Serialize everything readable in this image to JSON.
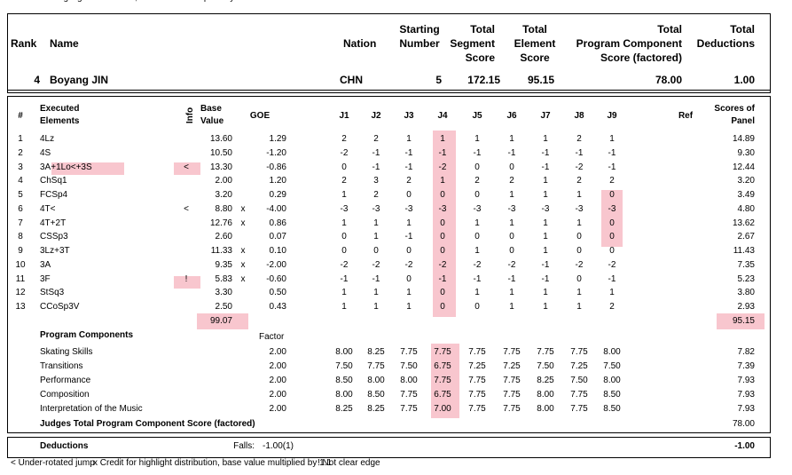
{
  "top_note": "x Credit for highlight distribution, base value multiplied by 1.1",
  "summary": {
    "labels": {
      "rank": "Rank",
      "name": "Name",
      "nation": "Nation",
      "starting_number": [
        "Starting",
        "Number"
      ],
      "segment": [
        "Total",
        "Segment",
        "Score"
      ],
      "element": [
        "Total",
        "Element",
        "Score"
      ],
      "pcs": [
        "Total",
        "Program  Component",
        "Score (factored)"
      ],
      "deductions": [
        "Total",
        "Deductions"
      ]
    },
    "row": {
      "rank": "4",
      "name": "Boyang JIN",
      "nation": "CHN",
      "starting_number": "5",
      "segment": "172.15",
      "element": "95.15",
      "pcs": "78.00",
      "deductions": "1.00"
    }
  },
  "elements": {
    "headers": {
      "num": "#",
      "name": [
        "Executed",
        "Elements"
      ],
      "info": "Info",
      "base": [
        "Base",
        "Value"
      ],
      "goe": "GOE",
      "judges": [
        "J1",
        "J2",
        "J3",
        "J4",
        "J5",
        "J6",
        "J7",
        "J8",
        "J9"
      ],
      "ref": "Ref",
      "panel": [
        "Scores of",
        "Panel"
      ]
    },
    "rows": [
      {
        "num": "1",
        "name": "4Lz",
        "base": "13.60",
        "goe": "1.29",
        "judges": [
          "2",
          "2",
          "1",
          "1",
          "1",
          "1",
          "1",
          "2",
          "1"
        ],
        "panel": "14.89"
      },
      {
        "num": "2",
        "name": "4S",
        "base": "10.50",
        "goe": "-1.20",
        "judges": [
          "-2",
          "-1",
          "-1",
          "-1",
          "-1",
          "-1",
          "-1",
          "-1",
          "-1"
        ],
        "panel": "9.30"
      },
      {
        "num": "3",
        "name": "3A+1Lo<+3S",
        "info": "<",
        "base": "13.30",
        "goe": "-0.86",
        "judges": [
          "0",
          "-1",
          "-1",
          "-2",
          "0",
          "0",
          "-1",
          "-2",
          "-1"
        ],
        "panel": "12.44"
      },
      {
        "num": "4",
        "name": "ChSq1",
        "base": "2.00",
        "goe": "1.20",
        "judges": [
          "2",
          "3",
          "2",
          "1",
          "2",
          "2",
          "1",
          "2",
          "2"
        ],
        "panel": "3.20"
      },
      {
        "num": "5",
        "name": "FCSp4",
        "base": "3.20",
        "goe": "0.29",
        "judges": [
          "1",
          "2",
          "0",
          "0",
          "0",
          "1",
          "1",
          "1",
          "0"
        ],
        "panel": "3.49"
      },
      {
        "num": "6",
        "name": "4T<",
        "info": "<",
        "base": "8.80",
        "x": "x",
        "goe": "-4.00",
        "judges": [
          "-3",
          "-3",
          "-3",
          "-3",
          "-3",
          "-3",
          "-3",
          "-3",
          "-3"
        ],
        "panel": "4.80"
      },
      {
        "num": "7",
        "name": "4T+2T",
        "base": "12.76",
        "x": "x",
        "goe": "0.86",
        "judges": [
          "1",
          "1",
          "1",
          "0",
          "1",
          "1",
          "1",
          "1",
          "0"
        ],
        "panel": "13.62"
      },
      {
        "num": "8",
        "name": "CSSp3",
        "base": "2.60",
        "goe": "0.07",
        "judges": [
          "0",
          "1",
          "-1",
          "0",
          "0",
          "0",
          "1",
          "0",
          "0"
        ],
        "panel": "2.67"
      },
      {
        "num": "9",
        "name": "3Lz+3T",
        "base": "11.33",
        "x": "x",
        "goe": "0.10",
        "judges": [
          "0",
          "0",
          "0",
          "0",
          "1",
          "0",
          "1",
          "0",
          "0"
        ],
        "panel": "11.43"
      },
      {
        "num": "10",
        "name": "3A",
        "base": "9.35",
        "x": "x",
        "goe": "-2.00",
        "judges": [
          "-2",
          "-2",
          "-2",
          "-2",
          "-2",
          "-2",
          "-1",
          "-2",
          "-2"
        ],
        "panel": "7.35"
      },
      {
        "num": "11",
        "name": "3F",
        "info": "!",
        "base": "5.83",
        "x": "x",
        "goe": "-0.60",
        "judges": [
          "-1",
          "-1",
          "0",
          "-1",
          "-1",
          "-1",
          "-1",
          "0",
          "-1"
        ],
        "panel": "5.23"
      },
      {
        "num": "12",
        "name": "StSq3",
        "base": "3.30",
        "goe": "0.50",
        "judges": [
          "1",
          "1",
          "1",
          "0",
          "1",
          "1",
          "1",
          "1",
          "1"
        ],
        "panel": "3.80"
      },
      {
        "num": "13",
        "name": "CCoSp3V",
        "base": "2.50",
        "goe": "0.43",
        "judges": [
          "1",
          "1",
          "1",
          "0",
          "0",
          "1",
          "1",
          "1",
          "2"
        ],
        "panel": "2.93"
      }
    ],
    "totals": {
      "base": "99.07",
      "panel": "95.15"
    }
  },
  "program_components": {
    "title": "Program Components",
    "factor_label": "Factor",
    "rows": [
      {
        "name": "Skating Skills",
        "factor": "2.00",
        "judges": [
          "8.00",
          "8.25",
          "7.75",
          "7.75",
          "7.75",
          "7.75",
          "7.75",
          "7.75",
          "8.00"
        ],
        "panel": "7.82"
      },
      {
        "name": "Transitions",
        "factor": "2.00",
        "judges": [
          "7.50",
          "7.75",
          "7.50",
          "6.75",
          "7.25",
          "7.25",
          "7.50",
          "7.25",
          "7.50"
        ],
        "panel": "7.39"
      },
      {
        "name": "Performance",
        "factor": "2.00",
        "judges": [
          "8.50",
          "8.00",
          "8.00",
          "7.75",
          "7.75",
          "7.75",
          "8.25",
          "7.50",
          "8.00"
        ],
        "panel": "7.93"
      },
      {
        "name": "Composition",
        "factor": "2.00",
        "judges": [
          "8.00",
          "8.50",
          "7.75",
          "6.75",
          "7.75",
          "7.75",
          "8.00",
          "7.75",
          "8.50"
        ],
        "panel": "7.93"
      },
      {
        "name": "Interpretation of the Music",
        "factor": "2.00",
        "judges": [
          "8.25",
          "8.25",
          "7.75",
          "7.00",
          "7.75",
          "7.75",
          "8.00",
          "7.75",
          "8.50"
        ],
        "panel": "7.93"
      }
    ],
    "total": {
      "label": "Judges Total Program Component Score (factored)",
      "value": "78.00"
    }
  },
  "deductions": {
    "label": "Deductions",
    "falls_label": "Falls:",
    "falls": "-1.00(1)",
    "total": "-1.00"
  },
  "legend": [
    "< Under-rotated jump",
    "x Credit for highlight distribution, base value multiplied by 1.1",
    "! Not clear edge"
  ]
}
